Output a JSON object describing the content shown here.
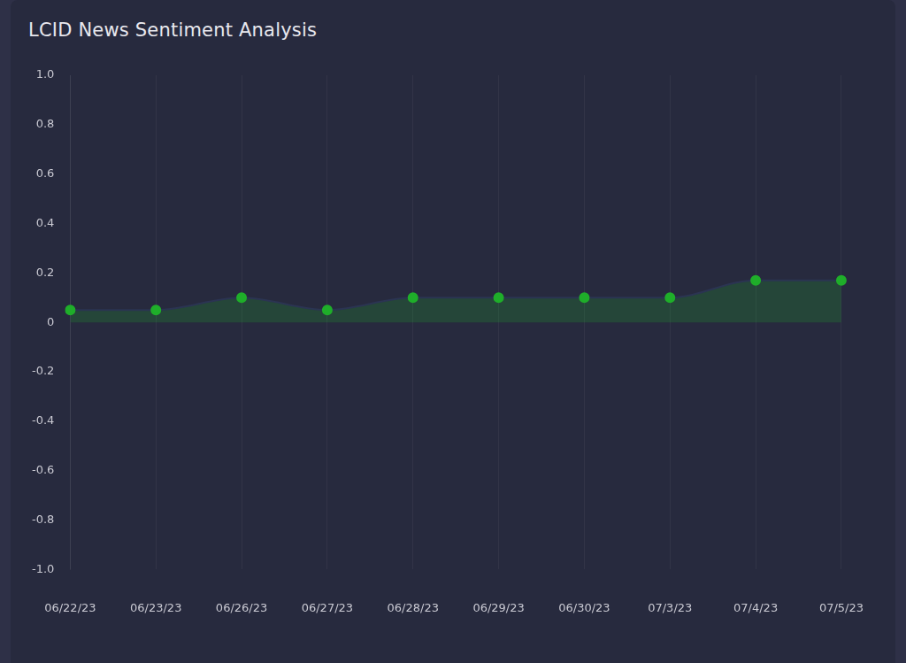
{
  "chart_data": {
    "type": "line",
    "title": "LCID News Sentiment Analysis",
    "categories": [
      "06/22/23",
      "06/23/23",
      "06/26/23",
      "06/27/23",
      "06/28/23",
      "06/29/23",
      "06/30/23",
      "07/3/23",
      "07/4/23",
      "07/5/23"
    ],
    "values": [
      0.05,
      0.05,
      0.1,
      0.05,
      0.1,
      0.1,
      0.1,
      0.1,
      0.17,
      0.17
    ],
    "color": "#1fae2a",
    "marker": "circle",
    "line_style": "solid",
    "ylim": [
      -1,
      1
    ],
    "yticks": [
      {
        "value": -1,
        "label": "-1.0"
      },
      -0.8,
      -0.6,
      -0.4,
      -0.2,
      0,
      0.2,
      0.4,
      0.6,
      0.8,
      {
        "value": 1,
        "label": "1.0"
      }
    ],
    "grid": true
  }
}
